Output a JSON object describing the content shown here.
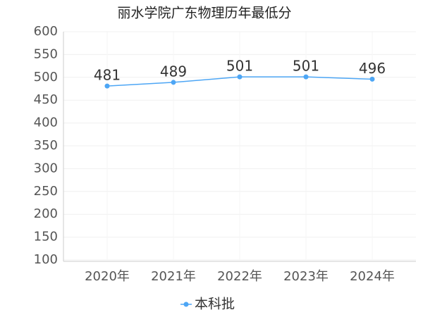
{
  "chart_data": {
    "type": "line",
    "title": "丽水学院广东物理历年最低分",
    "categories": [
      "2020年",
      "2021年",
      "2022年",
      "2023年",
      "2024年"
    ],
    "series": [
      {
        "name": "本科批",
        "color": "#4da6f5",
        "values": [
          481,
          489,
          501,
          501,
          496
        ]
      }
    ],
    "ylim": [
      100,
      600
    ],
    "yticks": [
      100,
      150,
      200,
      250,
      300,
      350,
      400,
      450,
      500,
      550,
      600
    ],
    "grid": true,
    "legend": "bottom"
  }
}
